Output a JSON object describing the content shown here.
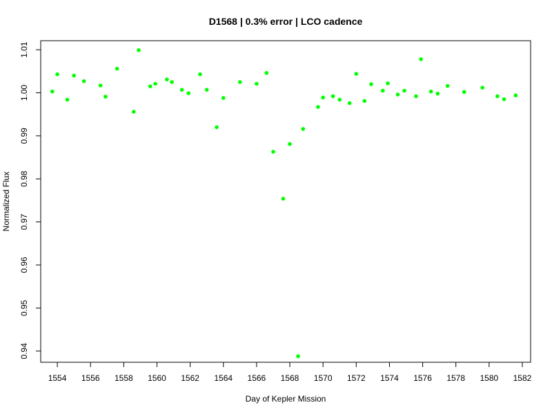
{
  "chart_data": {
    "type": "scatter",
    "title": "D1568 | 0.3% error | LCO cadence",
    "xlabel": "Day of Kepler Mission",
    "ylabel": "Normalized Flux",
    "xlim": [
      1553,
      1582.5
    ],
    "ylim": [
      0.9374,
      1.0121
    ],
    "x_ticks": [
      1554,
      1556,
      1558,
      1560,
      1562,
      1564,
      1566,
      1568,
      1570,
      1572,
      1574,
      1576,
      1578,
      1580,
      1582
    ],
    "y_ticks": [
      0.94,
      0.95,
      0.96,
      0.97,
      0.98,
      0.99,
      1.0,
      1.01
    ],
    "y_tick_labels": [
      "0.94",
      "0.95",
      "0.96",
      "0.97",
      "0.98",
      "0.99",
      "1.00",
      "1.01"
    ],
    "grid": false,
    "marker_color": "#00ff00",
    "series": [
      {
        "x": [
          1553.7,
          1554.0,
          1554.6,
          1555.0,
          1555.6,
          1556.6,
          1556.9,
          1557.6,
          1558.6,
          1558.9,
          1559.6,
          1559.9,
          1560.6,
          1560.9,
          1561.5,
          1561.9,
          1562.6,
          1563.0,
          1563.6,
          1564.0,
          1565.0,
          1566.0,
          1566.6,
          1567.0,
          1567.6,
          1568.0,
          1568.5,
          1568.8,
          1569.7,
          1570.0,
          1570.6,
          1571.0,
          1571.6,
          1572.0,
          1572.5,
          1572.9,
          1573.6,
          1573.9,
          1574.5,
          1574.9,
          1575.6,
          1575.9,
          1576.5,
          1576.9,
          1577.5,
          1578.5,
          1579.6,
          1580.5,
          1580.9,
          1581.6
        ],
        "y": [
          1.0003,
          1.0043,
          0.9984,
          1.004,
          1.0027,
          1.0017,
          0.9991,
          1.0056,
          0.9956,
          1.0099,
          1.0015,
          1.0021,
          1.0031,
          1.0025,
          1.0007,
          0.9999,
          1.0043,
          1.0007,
          0.992,
          0.9988,
          1.0025,
          1.0021,
          1.0046,
          0.9863,
          0.9754,
          0.9881,
          0.9388,
          0.9916,
          0.9967,
          0.9989,
          0.9992,
          0.9984,
          0.9976,
          1.0044,
          0.9981,
          1.002,
          1.0005,
          1.0022,
          0.9996,
          1.0005,
          0.9992,
          1.0078,
          1.0003,
          0.9998,
          1.0016,
          1.0002,
          1.0012,
          0.9992,
          0.9985,
          0.9994
        ]
      }
    ]
  }
}
